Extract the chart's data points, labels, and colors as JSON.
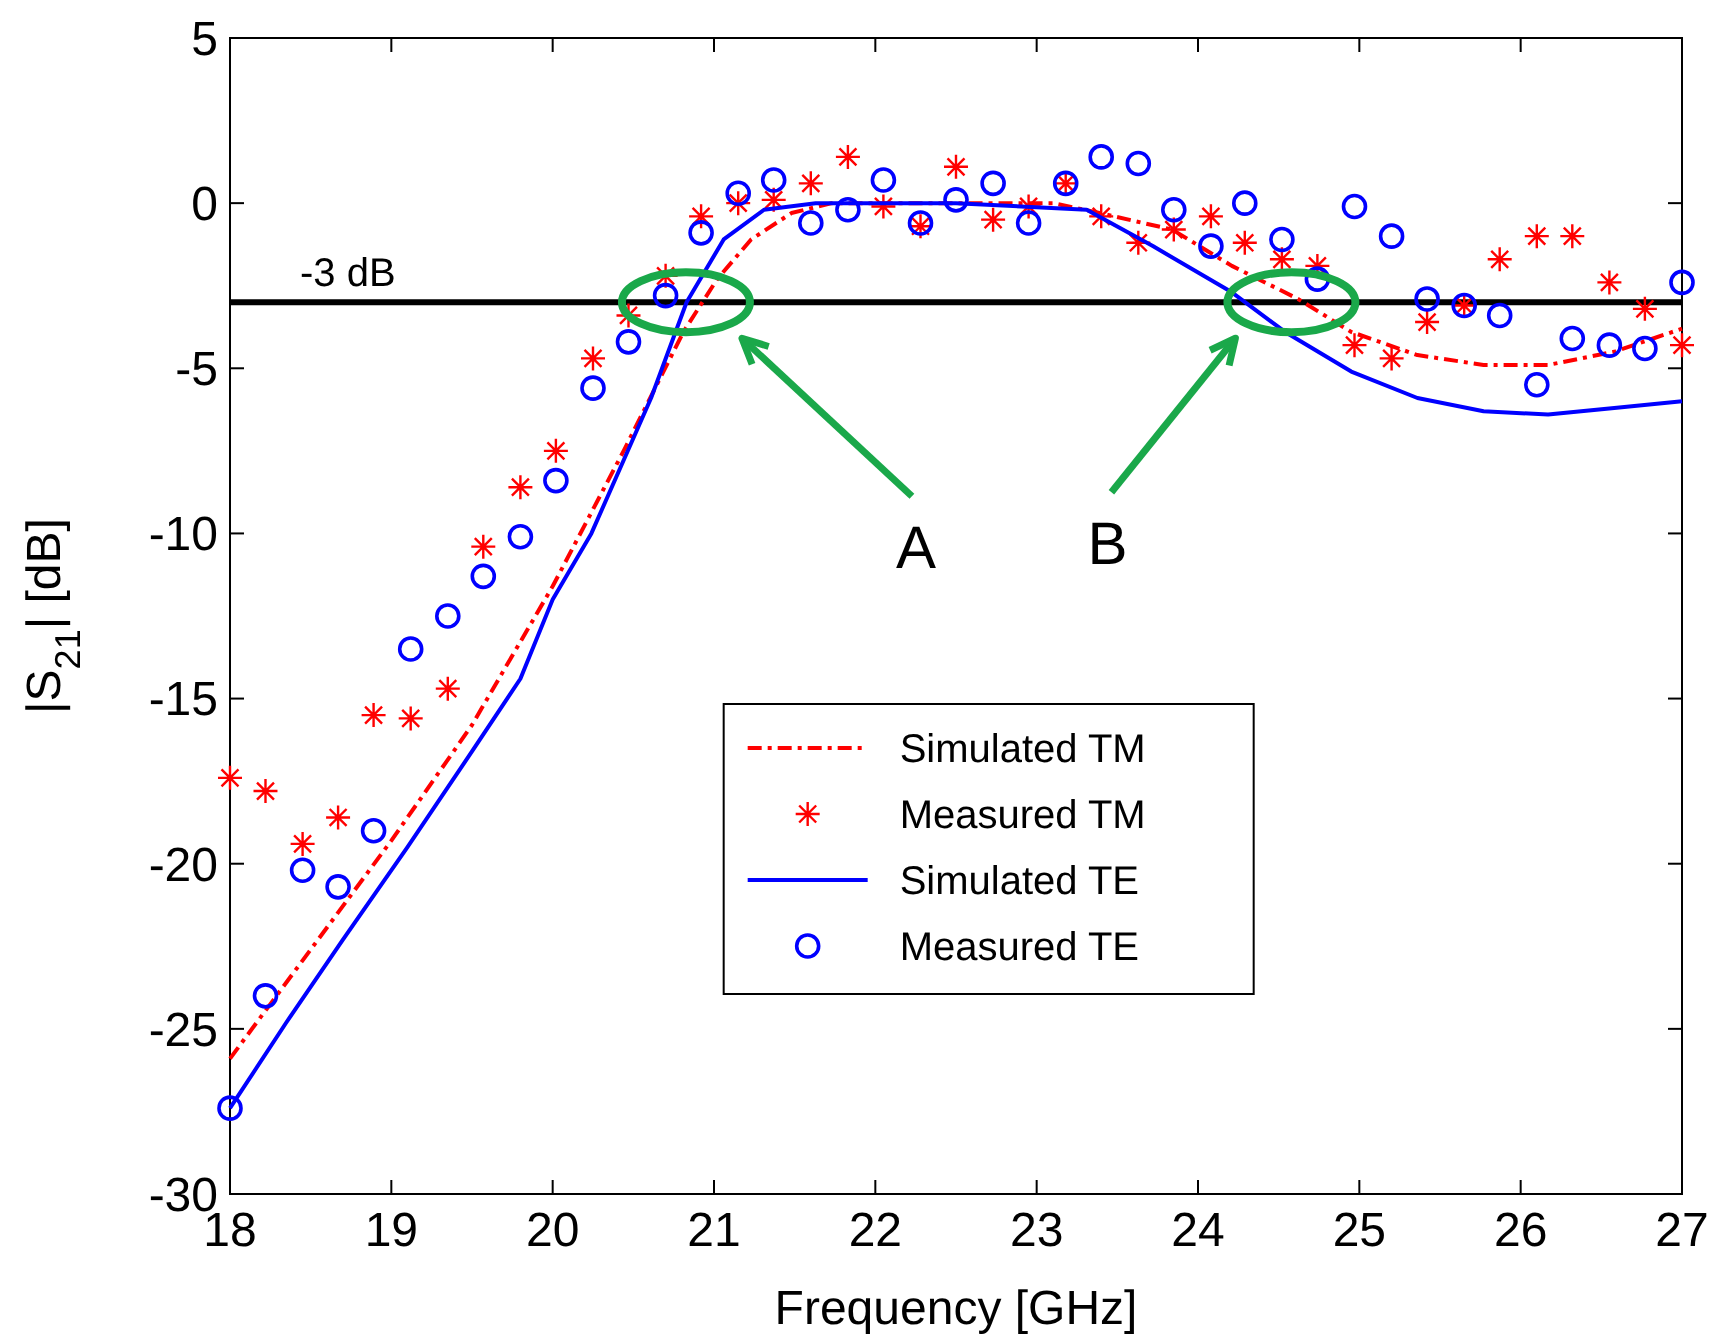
{
  "chart_data": {
    "type": "line",
    "xlabel": "Frequency [GHz]",
    "ylabel": "|S$_{21}$| [dB]",
    "xlim": [
      18,
      27
    ],
    "xticks": [
      18,
      19,
      20,
      21,
      22,
      23,
      24,
      25,
      26,
      27
    ],
    "ylim": [
      -30,
      5
    ],
    "yticks": [
      -30,
      -25,
      -20,
      -15,
      -10,
      -5,
      0,
      5
    ],
    "grid": false,
    "legend": "bottom",
    "ref_lines": [
      {
        "axis": "y",
        "value": -3,
        "label": "-3 dB",
        "color": "#000000"
      }
    ],
    "annotations": [
      "A",
      "B"
    ],
    "series": [
      {
        "name": "Simulated TM",
        "color": "#ff0000",
        "line_style": "dashed",
        "marker": "none",
        "x": [
          18,
          18.5,
          19,
          19.5,
          20,
          20.44,
          20.81,
          21.02,
          21.23,
          21.48,
          21.73,
          22.5,
          23.1,
          23.39,
          23.84,
          24.21,
          24.62,
          24.95,
          25.36,
          25.77,
          26.17,
          26.58,
          27
        ],
        "values": [
          -25.9,
          -22.6,
          -19.3,
          -15.8,
          -11.6,
          -7.5,
          -3.9,
          -2.3,
          -1.1,
          -0.3,
          0,
          0,
          0,
          -0.3,
          -0.8,
          -1.9,
          -2.9,
          -3.9,
          -4.6,
          -4.9,
          -4.9,
          -4.5,
          -3.8
        ]
      },
      {
        "name": "Measured TM",
        "type": "scatter",
        "color": "#ff0000",
        "marker": "cross",
        "x": [
          18,
          18.22,
          18.45,
          18.67,
          18.89,
          19.12,
          19.35,
          19.57,
          19.8,
          20.02,
          20.25,
          20.47,
          20.7,
          20.92,
          21.15,
          21.37,
          21.6,
          21.83,
          22.05,
          22.28,
          22.5,
          22.73,
          22.95,
          23.18,
          23.4,
          23.63,
          23.85,
          24.08,
          24.29,
          24.52,
          24.74,
          24.97,
          25.2,
          25.42,
          25.65,
          25.87,
          26.1,
          26.32,
          26.55,
          26.77,
          27
        ],
        "values": [
          -17.4,
          -17.8,
          -19.4,
          -18.6,
          -15.5,
          -15.6,
          -14.7,
          -10.4,
          -8.6,
          -7.5,
          -4.7,
          -3.4,
          -2.2,
          -0.4,
          0,
          0.1,
          0.6,
          1.4,
          -0.1,
          -0.7,
          1.1,
          -0.5,
          -0.1,
          0.6,
          -0.4,
          -1.2,
          -0.8,
          -0.4,
          -1.2,
          -1.7,
          -1.9,
          -4.3,
          -4.7,
          -3.6,
          -3.1,
          -1.7,
          -1,
          -1,
          -2.4,
          -3.2,
          -4.3
        ]
      },
      {
        "name": "Simulated TE",
        "color": "#0000ff",
        "line_style": "solid",
        "marker": "none",
        "x": [
          18,
          18.35,
          18.7,
          19.1,
          19.5,
          19.8,
          20,
          20.24,
          20.61,
          20.83,
          21.06,
          21.31,
          21.63,
          22.5,
          23.31,
          23.72,
          24.21,
          24.54,
          24.95,
          25.36,
          25.77,
          26.17,
          26.58,
          27
        ],
        "values": [
          -27.4,
          -24.8,
          -22.3,
          -19.5,
          -16.6,
          -14.4,
          -12,
          -10,
          -5.9,
          -3,
          -1.1,
          -0.2,
          0,
          0,
          -0.2,
          -1.3,
          -2.7,
          -3.9,
          -5.1,
          -5.9,
          -6.3,
          -6.4,
          -6.2,
          -6
        ]
      },
      {
        "name": "Measured TE",
        "type": "scatter",
        "color": "#0000ff",
        "marker": "circle",
        "x": [
          18,
          18.22,
          18.45,
          18.67,
          18.89,
          19.12,
          19.35,
          19.57,
          19.8,
          20.02,
          20.25,
          20.47,
          20.7,
          20.92,
          21.15,
          21.37,
          21.6,
          21.83,
          22.05,
          22.28,
          22.5,
          22.73,
          22.95,
          23.18,
          23.4,
          23.63,
          23.85,
          24.08,
          24.29,
          24.52,
          24.74,
          24.97,
          25.2,
          25.42,
          25.65,
          25.87,
          26.1,
          26.32,
          26.55,
          26.77,
          27
        ],
        "values": [
          -27.4,
          -24,
          -20.2,
          -20.7,
          -19,
          -13.5,
          -12.5,
          -11.3,
          -10.1,
          -8.4,
          -5.6,
          -4.2,
          -2.8,
          -0.9,
          0.3,
          0.7,
          -0.6,
          -0.2,
          0.7,
          -0.6,
          0.1,
          0.6,
          -0.6,
          0.6,
          1.4,
          1.2,
          -0.2,
          -1.3,
          0,
          -1.1,
          -2.3,
          -0.1,
          -1,
          -2.9,
          -3.1,
          -3.4,
          -5.5,
          -4.1,
          -4.3,
          -4.4,
          -2.4
        ]
      }
    ]
  }
}
